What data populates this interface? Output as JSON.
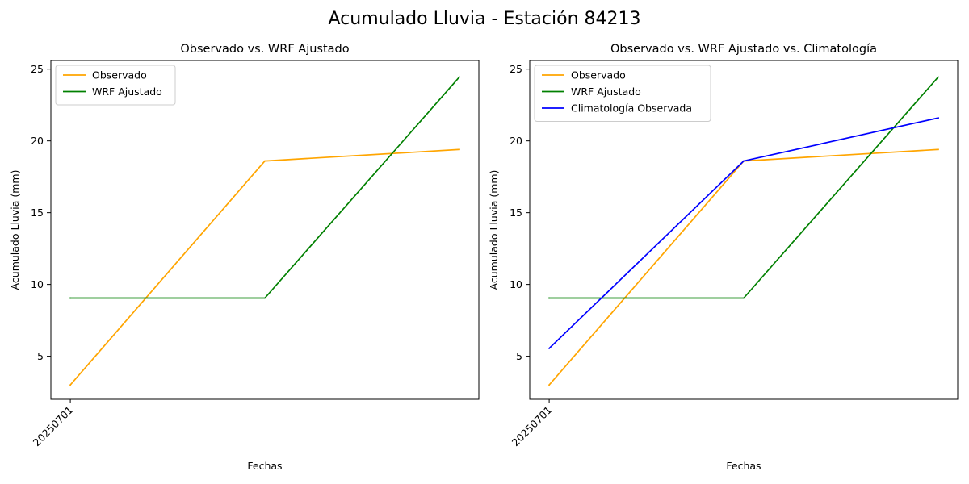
{
  "figure": {
    "title": "Acumulado Lluvia - Estación 84213"
  },
  "chart_data": [
    {
      "type": "line",
      "title": "Observado vs. WRF Ajustado",
      "xlabel": "Fechas",
      "ylabel": "Acumulado Lluvia (mm)",
      "x_tick_labels": [
        "20250701"
      ],
      "x_tick_rotation": 45,
      "yticks": [
        5,
        10,
        15,
        20,
        25
      ],
      "ylim": [
        2.0,
        25.6
      ],
      "grid": false,
      "legend_position": "upper-left",
      "x": [
        0,
        1,
        2
      ],
      "series": [
        {
          "name": "Observado",
          "color": "#ffa500",
          "values": [
            3.0,
            18.6,
            19.4
          ]
        },
        {
          "name": "WRF Ajustado",
          "color": "#008000",
          "values": [
            9.05,
            9.05,
            24.45
          ]
        }
      ]
    },
    {
      "type": "line",
      "title": "Observado vs. WRF Ajustado vs. Climatología",
      "xlabel": "Fechas",
      "ylabel": "Acumulado Lluvia (mm)",
      "x_tick_labels": [
        "20250701"
      ],
      "x_tick_rotation": 45,
      "yticks": [
        5,
        10,
        15,
        20,
        25
      ],
      "ylim": [
        2.0,
        25.6
      ],
      "grid": false,
      "legend_position": "upper-left",
      "x": [
        0,
        1,
        2
      ],
      "series": [
        {
          "name": "Observado",
          "color": "#ffa500",
          "values": [
            3.0,
            18.6,
            19.4
          ]
        },
        {
          "name": "WRF Ajustado",
          "color": "#008000",
          "values": [
            9.05,
            9.05,
            24.45
          ]
        },
        {
          "name": "Climatología Observada",
          "color": "#0000ff",
          "values": [
            5.55,
            18.6,
            21.6
          ]
        }
      ]
    }
  ]
}
